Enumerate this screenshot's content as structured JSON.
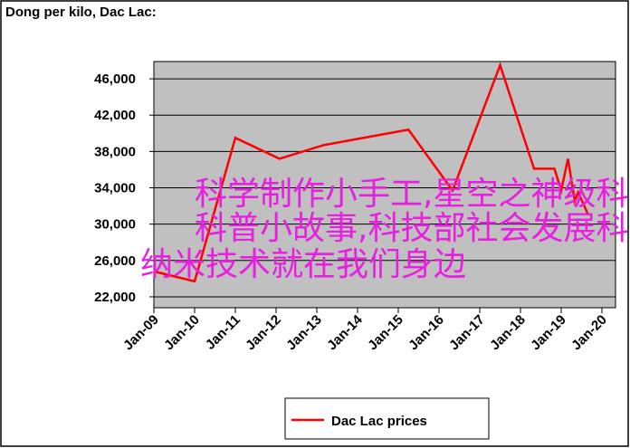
{
  "chart_data": {
    "type": "line",
    "title": "Dong per kilo, Dac Lac:",
    "x": [
      "2009-01",
      "2010-01",
      "2011-01",
      "2012-02",
      "2013-03",
      "2015-04",
      "2016-05",
      "2017-07",
      "2018-05",
      "2018-11",
      "2019-01",
      "2019-03",
      "2019-05",
      "2019-06",
      "2019-09"
    ],
    "series": [
      {
        "name": "Dac Lac prices",
        "color": "#ff0000",
        "values": [
          24800,
          23700,
          39500,
          37200,
          38700,
          40400,
          33700,
          47500,
          36100,
          36100,
          33700,
          37200,
          32500,
          33500,
          31000
        ]
      }
    ],
    "xlim": [
      "2009-01",
      "2020-05"
    ],
    "xticks": [
      {
        "value": "2009-01",
        "label": "Jan-09"
      },
      {
        "value": "2010-01",
        "label": "Jan-10"
      },
      {
        "value": "2011-01",
        "label": "Jan-11"
      },
      {
        "value": "2012-01",
        "label": "Jan-12"
      },
      {
        "value": "2013-01",
        "label": "Jan-13"
      },
      {
        "value": "2014-01",
        "label": "Jan-14"
      },
      {
        "value": "2015-01",
        "label": "Jan-15"
      },
      {
        "value": "2016-01",
        "label": "Jan-16"
      },
      {
        "value": "2017-01",
        "label": "Jan-17"
      },
      {
        "value": "2018-01",
        "label": "Jan-18"
      },
      {
        "value": "2019-01",
        "label": "Jan-19"
      },
      {
        "value": "2020-01",
        "label": "Jan-20"
      }
    ],
    "ylim": [
      20800,
      47900
    ],
    "yticks": [
      {
        "value": 22000,
        "label": "22,000"
      },
      {
        "value": 26000,
        "label": "26,000"
      },
      {
        "value": 30000,
        "label": "30,000"
      },
      {
        "value": 34000,
        "label": "34,000"
      },
      {
        "value": 38000,
        "label": "38,000"
      },
      {
        "value": 42000,
        "label": "42,000"
      },
      {
        "value": 46000,
        "label": "46,000"
      }
    ],
    "grid": true,
    "legend": "bottom"
  },
  "overlay_text": [
    "科学制作小手工,星空之神级科技树,",
    "科普小故事,科技部社会发展科技司,",
    "纳米技术就在我们身边"
  ]
}
